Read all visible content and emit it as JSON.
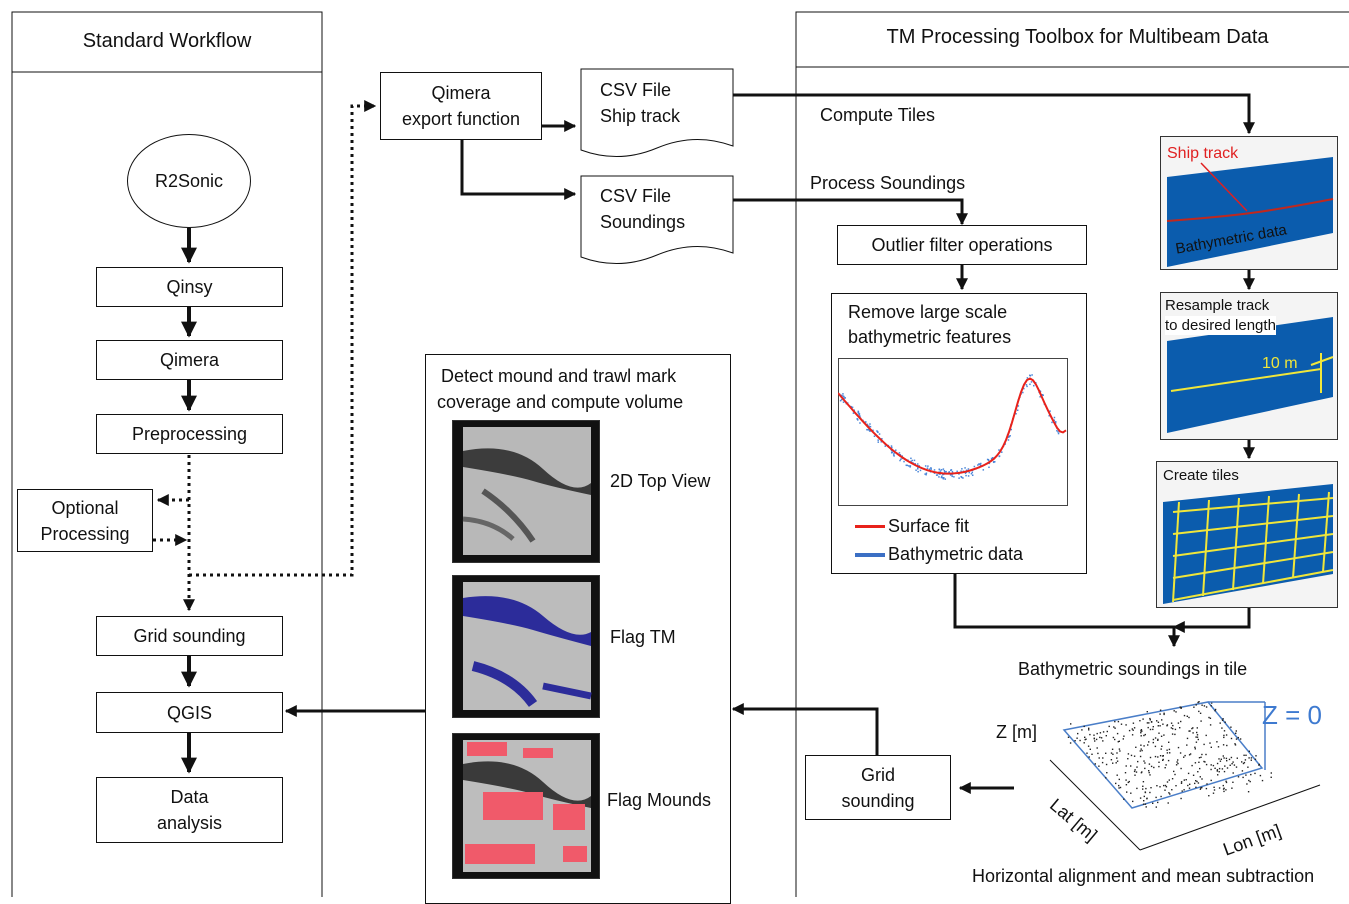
{
  "panels": {
    "left_title": "Standard Workflow",
    "right_title": "TM Processing Toolbox for Multibeam Data"
  },
  "standard": {
    "r2sonic": "R2Sonic",
    "qinsy": "Qinsy",
    "qimera": "Qimera",
    "preprocessing": "Preprocessing",
    "optional_line1": "Optional",
    "optional_line2": "Processing",
    "grid_sounding": "Grid sounding",
    "qgis": "QGIS",
    "data_line1": "Data",
    "data_line2": "analysis"
  },
  "export": {
    "line1": "Qimera",
    "line2": "export function"
  },
  "csv_track": {
    "line1": "CSV File",
    "line2": "Ship track"
  },
  "csv_soundings": {
    "line1": "CSV File",
    "line2": "Soundings"
  },
  "detect": {
    "title_line1": "Detect mound and trawl mark",
    "title_line2": "coverage and compute volume",
    "view1": "2D Top View",
    "view2": "Flag TM",
    "view3": "Flag Mounds"
  },
  "toolbox": {
    "compute_tiles": "Compute Tiles",
    "process_soundings": "Process Soundings",
    "outlier": "Outlier filter operations",
    "remove_line1": "Remove large scale",
    "remove_line2": "bathymetric features",
    "legend_fit": "Surface fit",
    "legend_bathy": "Bathymetric data",
    "fit_color": "#e8221b",
    "bathy_color": "#3b6fc4",
    "ship_track": "Ship track",
    "bathymetric_data": "Bathymetric data",
    "resample_line1": "Resample track",
    "resample_line2": "to desired length",
    "ten_m": "10 m",
    "create_tiles": "Create tiles",
    "tile_caption": "Bathymetric soundings in tile",
    "z_axis": "Z [m]",
    "z_zero": "Z = 0",
    "lat_axis": "Lat [m]",
    "lon_axis": "Lon [m]",
    "bottom_caption": "Horizontal alignment and mean subtraction",
    "grid_line1": "Grid",
    "grid_line2": "sounding",
    "ocean_color": "#0b5cad",
    "tile_color": "#f0e63a"
  }
}
